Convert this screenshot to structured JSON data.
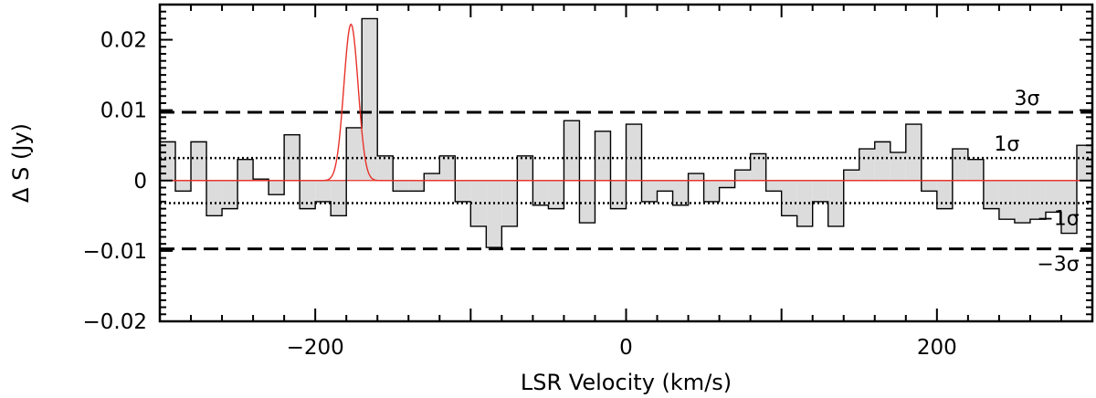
{
  "chart_data": {
    "type": "bar",
    "style": "step-histogram",
    "xlabel": "LSR Velocity (km/s)",
    "ylabel": "Δ S (Jy)",
    "xlim": [
      -300,
      300
    ],
    "ylim": [
      -0.02,
      0.025
    ],
    "xticks": [
      -200,
      0,
      200
    ],
    "xtick_labels": [
      "−200",
      "0",
      "200"
    ],
    "yticks": [
      -0.02,
      -0.01,
      0,
      0.01,
      0.02
    ],
    "ytick_labels": [
      "−0.02",
      "−0.01",
      "0",
      "0.01",
      "0.02"
    ],
    "bin_width": 10,
    "x": [
      -300,
      -290,
      -280,
      -270,
      -260,
      -250,
      -240,
      -230,
      -220,
      -210,
      -200,
      -190,
      -180,
      -170,
      -160,
      -150,
      -140,
      -130,
      -120,
      -110,
      -100,
      -90,
      -80,
      -70,
      -60,
      -50,
      -40,
      -30,
      -20,
      -10,
      0,
      10,
      20,
      30,
      40,
      50,
      60,
      70,
      80,
      90,
      100,
      110,
      120,
      130,
      140,
      150,
      160,
      170,
      180,
      190,
      200,
      210,
      220,
      230,
      240,
      250,
      260,
      270,
      280,
      290
    ],
    "values": [
      0.0055,
      -0.0015,
      0.0055,
      -0.005,
      -0.004,
      0.003,
      0.0002,
      -0.002,
      0.0065,
      -0.004,
      -0.003,
      -0.005,
      0.0075,
      0.023,
      0.0035,
      -0.0015,
      -0.0015,
      0.001,
      0.0035,
      -0.003,
      -0.0065,
      -0.0095,
      -0.0065,
      0.0035,
      -0.0035,
      -0.004,
      0.0085,
      -0.006,
      0.007,
      -0.004,
      0.008,
      -0.003,
      -0.0015,
      -0.0035,
      0.001,
      -0.003,
      -0.001,
      0.0015,
      0.0038,
      -0.0015,
      -0.005,
      -0.0065,
      -0.003,
      -0.0065,
      0.0015,
      0.0045,
      0.0055,
      0.004,
      0.008,
      -0.0015,
      -0.004,
      0.0045,
      0.003,
      -0.004,
      -0.0055,
      -0.006,
      -0.0055,
      -0.0045,
      -0.0075,
      0.005
    ],
    "last_edge_value": -0.002,
    "fit": {
      "type": "gaussian",
      "amplitude": 0.0222,
      "center": -177,
      "sigma": 4.6,
      "color": "#e8322a"
    },
    "reference_lines": [
      {
        "label": "3σ",
        "y": 0.0097,
        "style": "dashed",
        "label_x": 258
      },
      {
        "label": "1σ",
        "y": 0.0032,
        "style": "dotted",
        "label_x": 245
      },
      {
        "label": "−1σ",
        "y": -0.0032,
        "style": "dotted",
        "label_x": 278
      },
      {
        "label": "−3σ",
        "y": -0.0097,
        "style": "dashed",
        "label_x": 278
      }
    ],
    "label_sides": [
      "above",
      "above",
      "below",
      "below"
    ],
    "fill_color": "#dcdcdc",
    "line_color": "#000000",
    "grid": false,
    "legend": "none"
  }
}
